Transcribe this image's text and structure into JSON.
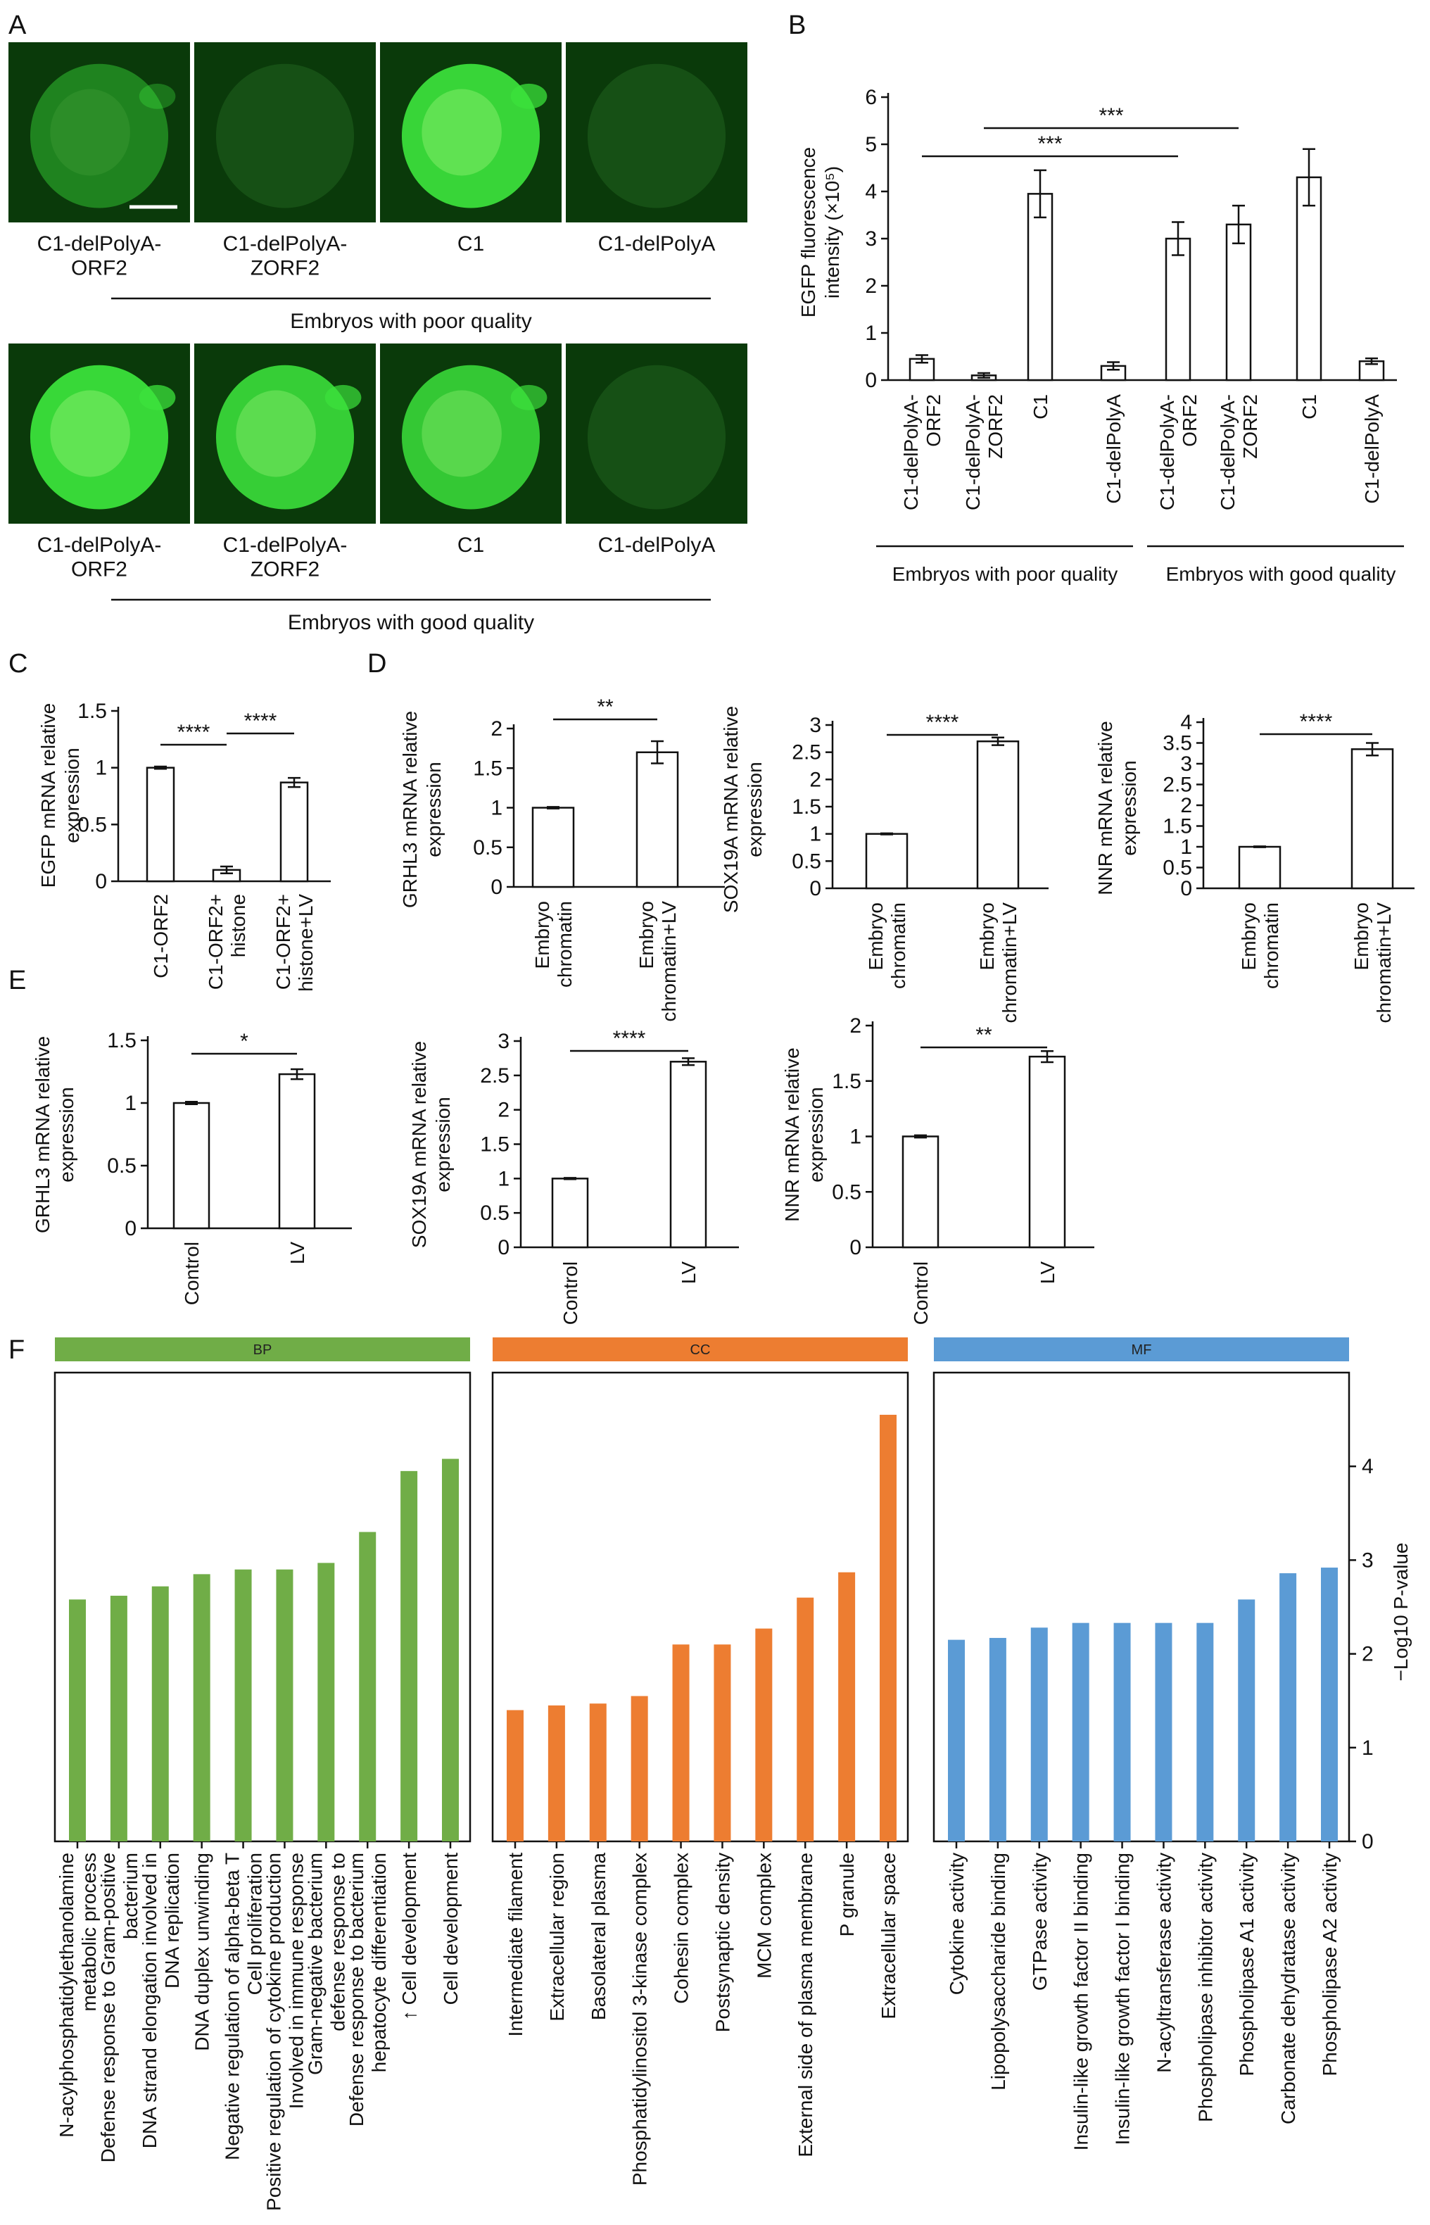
{
  "colors": {
    "bp": "#70ad47",
    "cc": "#ed7d31",
    "mf": "#5b9bd5",
    "fluor": "#3ce23c"
  },
  "panel_labels": [
    "A",
    "B",
    "C",
    "D",
    "E",
    "F"
  ],
  "panelA": {
    "rows": [
      {
        "captions": [
          "C1-delPolyA-\nORF2",
          "C1-delPolyA-\nZORF2",
          "C1",
          "C1-delPolyA"
        ],
        "group": "Embryos with poor quality",
        "brightness": [
          0.25,
          0.02,
          0.9,
          0.04
        ]
      },
      {
        "captions": [
          "C1-delPolyA-\nORF2",
          "C1-delPolyA-\nZORF2",
          "C1",
          "C1-delPolyA"
        ],
        "group": "Embryos with good quality",
        "brightness": [
          0.92,
          0.85,
          0.8,
          0.05
        ]
      }
    ]
  },
  "chart_data": [
    {
      "id": "B",
      "type": "bar",
      "ylabel": "EGFP fluorescence\nintensity (×10⁵)",
      "ylim": [
        0,
        6
      ],
      "yticks": [
        0,
        1,
        2,
        3,
        4,
        5,
        6
      ],
      "categories": [
        "C1-delPolyA-\nORF2",
        "C1-delPolyA-\nZORF2",
        "C1",
        "C1-delPolyA",
        "C1-delPolyA-\nORF2",
        "C1-delPolyA-\nZORF2",
        "C1",
        "C1-delPolyA"
      ],
      "values": [
        0.45,
        0.1,
        3.95,
        0.3,
        3.0,
        3.3,
        4.3,
        0.4
      ],
      "errors": [
        0.08,
        0.05,
        0.5,
        0.08,
        0.35,
        0.4,
        0.6,
        0.06
      ],
      "groups": [
        "Embryos with poor quality",
        "Embryos with good quality"
      ],
      "significance": [
        {
          "label": "***",
          "from": 0,
          "to": 4
        },
        {
          "label": "***",
          "from": 1,
          "to": 5
        }
      ]
    },
    {
      "id": "C",
      "type": "bar",
      "ylabel": "EGFP mRNA relative\nexpression",
      "ylim": [
        0,
        1.5
      ],
      "yticks": [
        0,
        0.5,
        1,
        1.5
      ],
      "categories": [
        "C1-ORF2",
        "C1-ORF2+\nhistone",
        "C1-ORF2+\nhistone+LV"
      ],
      "values": [
        1.0,
        0.1,
        0.87
      ],
      "errors": [
        0.01,
        0.03,
        0.04
      ],
      "significance": [
        {
          "label": "****",
          "from": 0,
          "to": 1
        },
        {
          "label": "****",
          "from": 1,
          "to": 2
        }
      ]
    },
    {
      "id": "D1",
      "type": "bar",
      "ylabel": "GRHL3 mRNA relative\nexpression",
      "ylim": [
        0,
        2
      ],
      "yticks": [
        0,
        0.5,
        1,
        1.5,
        2
      ],
      "categories": [
        "Embryo\nchromatin",
        "Embryo\nchromatin+LV"
      ],
      "values": [
        1.0,
        1.7
      ],
      "errors": [
        0.01,
        0.14
      ],
      "significance": [
        {
          "label": "**",
          "from": 0,
          "to": 1
        }
      ]
    },
    {
      "id": "D2",
      "type": "bar",
      "ylabel": "SOX19A mRNA relative\nexpression",
      "ylim": [
        0,
        3
      ],
      "yticks": [
        0,
        0.5,
        1,
        1.5,
        2,
        2.5,
        3
      ],
      "categories": [
        "Embryo\nchromatin",
        "Embryo\nchromatin+LV"
      ],
      "values": [
        1.0,
        2.7
      ],
      "errors": [
        0.01,
        0.07
      ],
      "significance": [
        {
          "label": "****",
          "from": 0,
          "to": 1
        }
      ]
    },
    {
      "id": "D3",
      "type": "bar",
      "ylabel": "NNR mRNA relative\nexpression",
      "ylim": [
        0,
        4
      ],
      "yticks": [
        0,
        0.5,
        1,
        1.5,
        2,
        2.5,
        3,
        3.5,
        4
      ],
      "categories": [
        "Embryo\nchromatin",
        "Embryo\nchromatin+LV"
      ],
      "values": [
        1.0,
        3.35
      ],
      "errors": [
        0.01,
        0.15
      ],
      "significance": [
        {
          "label": "****",
          "from": 0,
          "to": 1
        }
      ]
    },
    {
      "id": "E1",
      "type": "bar",
      "ylabel": "GRHL3 mRNA relative\nexpression",
      "ylim": [
        0,
        1.5
      ],
      "yticks": [
        0,
        0.5,
        1,
        1.5
      ],
      "categories": [
        "Control",
        "LV"
      ],
      "values": [
        1.0,
        1.23
      ],
      "errors": [
        0.01,
        0.04
      ],
      "significance": [
        {
          "label": "*",
          "from": 0,
          "to": 1
        }
      ]
    },
    {
      "id": "E2",
      "type": "bar",
      "ylabel": "SOX19A mRNA relative\nexpression",
      "ylim": [
        0,
        3
      ],
      "yticks": [
        0,
        0.5,
        1,
        1.5,
        2,
        2.5,
        3
      ],
      "categories": [
        "Control",
        "LV"
      ],
      "values": [
        1.0,
        2.7
      ],
      "errors": [
        0.01,
        0.05
      ],
      "significance": [
        {
          "label": "****",
          "from": 0,
          "to": 1
        }
      ]
    },
    {
      "id": "E3",
      "type": "bar",
      "ylabel": "NNR mRNA relative\nexpression",
      "ylim": [
        0,
        2
      ],
      "yticks": [
        0,
        0.5,
        1,
        1.5,
        2
      ],
      "categories": [
        "Control",
        "LV"
      ],
      "values": [
        1.0,
        1.72
      ],
      "errors": [
        0.01,
        0.05
      ],
      "significance": [
        {
          "label": "**",
          "from": 0,
          "to": 1
        }
      ]
    },
    {
      "id": "F",
      "type": "bar",
      "ylabel": "−Log10 P-value",
      "ylim": [
        0,
        5
      ],
      "yticks": [
        0,
        1,
        2,
        3,
        4
      ],
      "facets": [
        {
          "name": "BP",
          "color_key": "bp",
          "categories": [
            "N-acylphosphatidylethanolamine\nmetabolic process",
            "Defense response to Gram-positive\nbacterium",
            "DNA strand elongation involved in\nDNA replication",
            "DNA duplex unwinding",
            "Negative regulation of alpha-beta T\nCell proliferation",
            "Positive regulation of cytokine production\nInvolved in immune response",
            "Gram-negative bacterium\ndefense response to",
            "Defense response to bacterium\nhepatocyte differentiation",
            "↑ Cell development",
            "Cell development"
          ],
          "values": [
            2.58,
            2.62,
            2.72,
            2.85,
            2.9,
            2.9,
            2.97,
            3.3,
            3.95,
            4.08
          ]
        },
        {
          "name": "CC",
          "color_key": "cc",
          "categories": [
            "Intermediate filament",
            "Extracellular region",
            "Basolateral plasma",
            "Phosphatidylinositol 3-kinase complex",
            "Cohesin complex",
            "Postsynaptic density",
            "MCM complex",
            "External side of plasma membrane",
            "P granule",
            "Extracellular space"
          ],
          "values": [
            1.4,
            1.45,
            1.47,
            1.55,
            2.1,
            2.1,
            2.27,
            2.6,
            2.87,
            4.55
          ]
        },
        {
          "name": "MF",
          "color_key": "mf",
          "categories": [
            "Cytokine activity",
            "Lipopolysaccharide binding",
            "GTPase activity",
            "Insulin-like growth factor II binding",
            "Insulin-like growth factor I binding",
            "N-acyltransferase activity",
            "Phospholipase inhibitor activity",
            "Phospholipase A1 activity",
            "Carbonate dehydratase activity",
            "Phospholipase A2 activity"
          ],
          "values": [
            2.15,
            2.17,
            2.28,
            2.33,
            2.33,
            2.33,
            2.33,
            2.58,
            2.86,
            2.92
          ]
        }
      ]
    }
  ]
}
